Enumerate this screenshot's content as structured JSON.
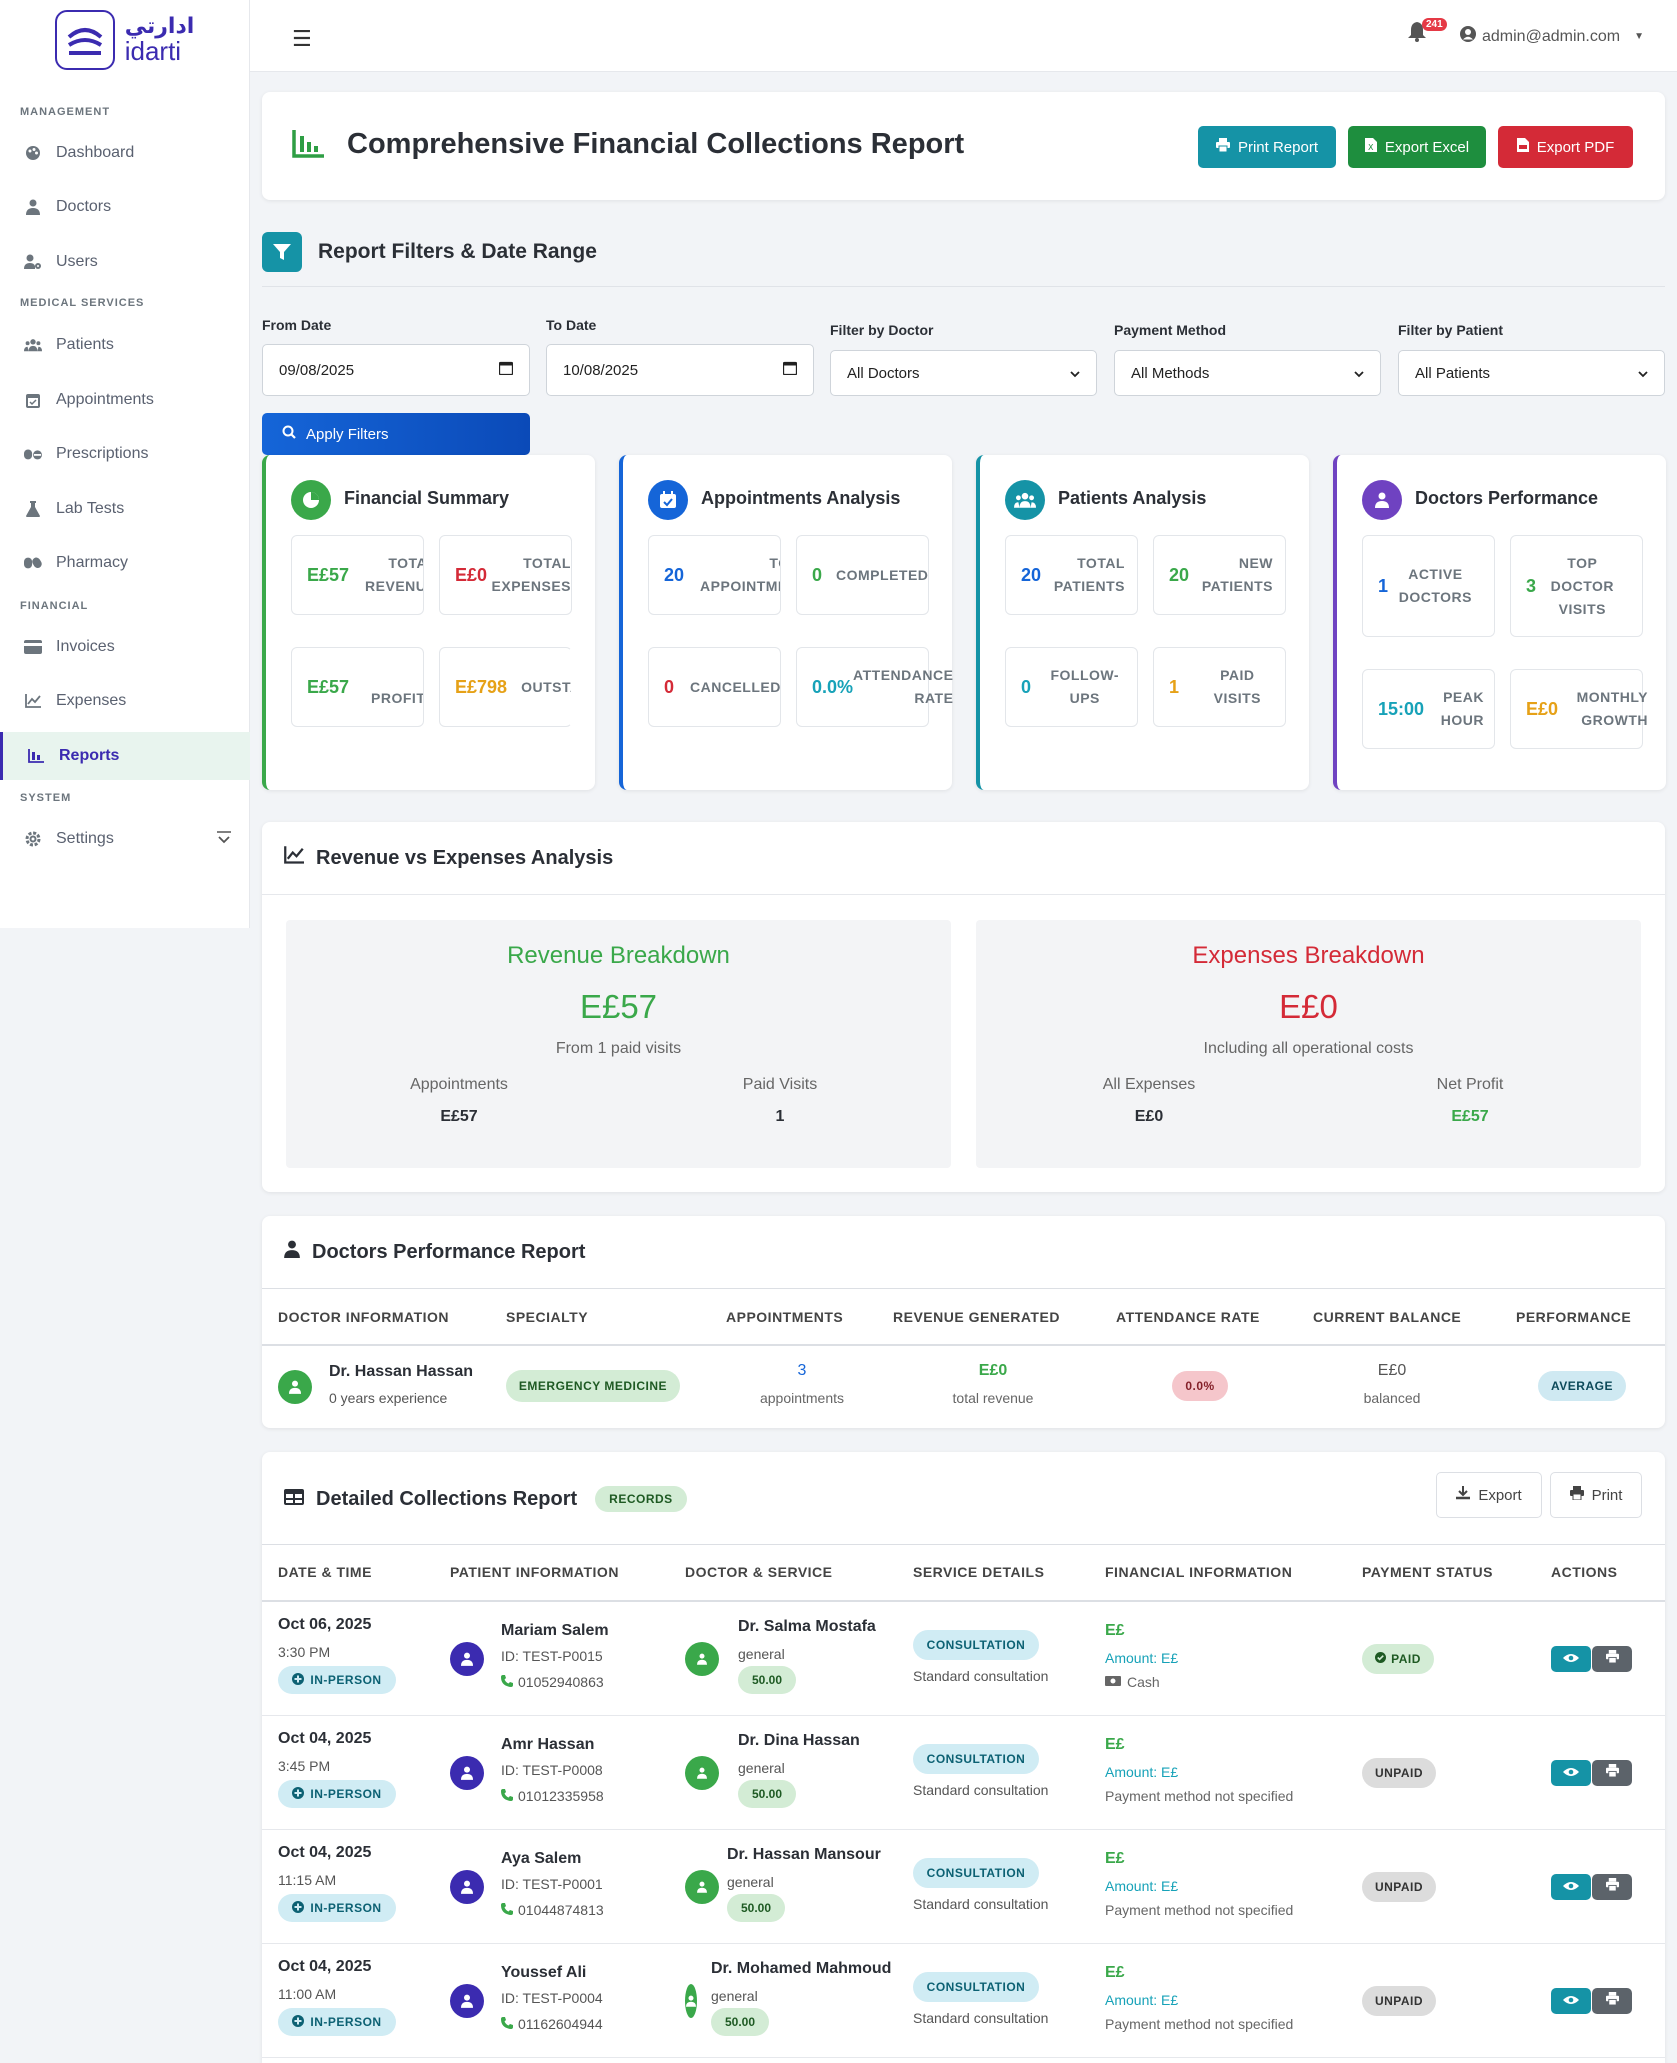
{
  "brand": {
    "name_ar": "ادارتي",
    "name_en": "idarti"
  },
  "sidebar": {
    "sections": {
      "management": "MANAGEMENT",
      "medical": "MEDICAL SERVICES",
      "financial": "FINANCIAL",
      "system": "SYSTEM"
    },
    "items": {
      "dashboard": "Dashboard",
      "doctors": "Doctors",
      "users": "Users",
      "patients": "Patients",
      "appointments": "Appointments",
      "prescriptions": "Prescriptions",
      "lab_tests": "Lab Tests",
      "pharmacy": "Pharmacy",
      "invoices": "Invoices",
      "expenses": "Expenses",
      "reports": "Reports",
      "settings": "Settings"
    },
    "active": "reports"
  },
  "topbar": {
    "notification_count": "241",
    "user_email": "admin@admin.com"
  },
  "header": {
    "title": "Comprehensive Financial Collections Report",
    "print_label": "Print Report",
    "excel_label": "Export Excel",
    "pdf_label": "Export PDF"
  },
  "filters": {
    "heading": "Report Filters & Date Range",
    "from_label": "From Date",
    "from_value": "09/08/2025",
    "to_label": "To Date",
    "to_value": "10/08/2025",
    "doctor_label": "Filter by Doctor",
    "doctor_value": "All Doctors",
    "payment_label": "Payment Method",
    "payment_value": "All Methods",
    "patient_label": "Filter by Patient",
    "patient_value": "All Patients",
    "apply_label": "Apply Filters"
  },
  "summary": {
    "financial": {
      "title": "Financial Summary",
      "total_revenue": {
        "value": "E£57",
        "label": "TOTAL\nREVENUE"
      },
      "total_expenses": {
        "value": "E£0",
        "label": "TOTAL\nEXPENSES"
      },
      "net_profit": {
        "value": "E£57",
        "label": "NET\nPROFIT/LOSS"
      },
      "outstanding": {
        "value": "E£798",
        "label": "OUTSTANDING"
      }
    },
    "appointments": {
      "title": "Appointments Analysis",
      "total": {
        "value": "20",
        "label": "TOTAL\nAPPOINTMENTS"
      },
      "completed": {
        "value": "0",
        "label": "COMPLETED"
      },
      "cancelled": {
        "value": "0",
        "label": "CANCELLED"
      },
      "attendance": {
        "value": "0.0%",
        "label": "ATTENDANCE\nRATE"
      }
    },
    "patients": {
      "title": "Patients Analysis",
      "total": {
        "value": "20",
        "label": "TOTAL\nPATIENTS"
      },
      "new": {
        "value": "20",
        "label": "NEW\nPATIENTS"
      },
      "followups": {
        "value": "0",
        "label": "FOLLOW-\nUPS"
      },
      "paid": {
        "value": "1",
        "label": "PAID\nVISITS"
      }
    },
    "doctors": {
      "title": "Doctors Performance",
      "active": {
        "value": "1",
        "label": "ACTIVE\nDOCTORS"
      },
      "top_visits": {
        "value": "3",
        "label": "TOP\nDOCTOR\nVISITS"
      },
      "peak_hour": {
        "value": "15:00",
        "label": "PEAK\nHOUR"
      },
      "monthly_growth": {
        "value": "E£0",
        "label": "MONTHLY\nGROWTH"
      }
    }
  },
  "revenue_vs_expenses": {
    "heading": "Revenue vs Expenses Analysis",
    "revenue": {
      "title": "Revenue Breakdown",
      "value": "E£57",
      "sub": "From 1 paid visits",
      "col1_label": "Appointments",
      "col1_value": "E£57",
      "col2_label": "Paid Visits",
      "col2_value": "1"
    },
    "expenses": {
      "title": "Expenses Breakdown",
      "value": "E£0",
      "sub": "Including all operational costs",
      "col1_label": "All Expenses",
      "col1_value": "E£0",
      "col2_label": "Net Profit",
      "col2_value": "E£57"
    }
  },
  "doctors_report": {
    "heading": "Doctors Performance Report",
    "columns": [
      "DOCTOR INFORMATION",
      "SPECIALTY",
      "APPOINTMENTS",
      "REVENUE GENERATED",
      "ATTENDANCE RATE",
      "CURRENT BALANCE",
      "PERFORMANCE"
    ],
    "rows": [
      {
        "name": "Dr. Hassan Hassan",
        "experience": "0 years experience",
        "specialty": "EMERGENCY MEDICINE",
        "appointments": "3",
        "appointments_unit": "appointments",
        "revenue": "E£0",
        "revenue_unit": "total revenue",
        "attendance": "0.0%",
        "balance": "E£0",
        "balance_note": "balanced",
        "performance": "AVERAGE"
      }
    ]
  },
  "collections": {
    "heading": "Detailed Collections Report",
    "badge": "RECORDS",
    "export_label": "Export",
    "print_label": "Print",
    "columns": [
      "DATE & TIME",
      "PATIENT INFORMATION",
      "DOCTOR & SERVICE",
      "SERVICE DETAILS",
      "FINANCIAL INFORMATION",
      "PAYMENT STATUS",
      "ACTIONS"
    ],
    "rows": [
      {
        "date": "Oct 06, 2025",
        "time": "3:30 PM",
        "visit_type": "IN-PERSON",
        "patient": "Mariam Salem",
        "patient_id": "ID: TEST-P0015",
        "phone": "01052940863",
        "doctor": "Dr. Salma Mostafa",
        "doctor_spec": "general",
        "fee": "50.00",
        "service": "CONSULTATION",
        "service_desc": "Standard consultation",
        "currency": "E£",
        "amount": "Amount: E£",
        "method": "Cash",
        "status": "PAID"
      },
      {
        "date": "Oct 04, 2025",
        "time": "3:45 PM",
        "visit_type": "IN-PERSON",
        "patient": "Amr Hassan",
        "patient_id": "ID: TEST-P0008",
        "phone": "01012335958",
        "doctor": "Dr. Dina Hassan",
        "doctor_spec": "general",
        "fee": "50.00",
        "service": "CONSULTATION",
        "service_desc": "Standard consultation",
        "currency": "E£",
        "amount": "Amount: E£",
        "method": "Payment method not specified",
        "status": "UNPAID"
      },
      {
        "date": "Oct 04, 2025",
        "time": "11:15 AM",
        "visit_type": "IN-PERSON",
        "patient": "Aya Salem",
        "patient_id": "ID: TEST-P0001",
        "phone": "01044874813",
        "doctor": "Dr. Hassan Mansour",
        "doctor_spec": "general",
        "fee": "50.00",
        "service": "CONSULTATION",
        "service_desc": "Standard consultation",
        "currency": "E£",
        "amount": "Amount: E£",
        "method": "Payment method not specified",
        "status": "UNPAID"
      },
      {
        "date": "Oct 04, 2025",
        "time": "11:00 AM",
        "visit_type": "IN-PERSON",
        "patient": "Youssef Ali",
        "patient_id": "ID: TEST-P0004",
        "phone": "01162604944",
        "doctor": "Dr. Mohamed Mahmoud",
        "doctor_spec": "general",
        "fee": "50.00",
        "service": "CONSULTATION",
        "service_desc": "Standard consultation",
        "currency": "E£",
        "amount": "Amount: E£",
        "method": "Payment method not specified",
        "status": "UNPAID"
      }
    ]
  },
  "colors": {
    "brand": "#3b2bb0",
    "green": "#3aa84a",
    "red": "#d42a37",
    "teal": "#1593a6",
    "blue": "#1565d8",
    "orange": "#e6a117",
    "purple": "#6f42c1"
  }
}
